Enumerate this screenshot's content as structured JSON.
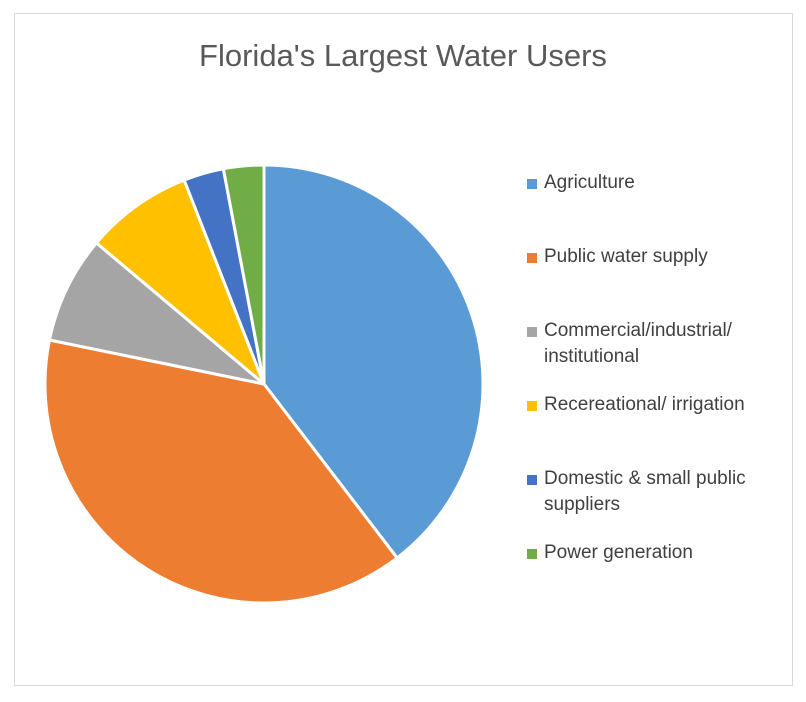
{
  "chart_data": {
    "type": "pie",
    "title": "Florida's Largest Water Users",
    "slices": [
      {
        "label": "Agriculture",
        "value": 40,
        "color": "#5b9bd5"
      },
      {
        "label": "Public water supply",
        "value": 39,
        "color": "#ed7d31"
      },
      {
        "label": "Commercial/industrial/ institutional",
        "value": 8,
        "color": "#a5a5a5"
      },
      {
        "label": "Recereational/ irrigation",
        "value": 8,
        "color": "#ffc000"
      },
      {
        "label": "Domestic & small public suppliers",
        "value": 3,
        "color": "#4472c4"
      },
      {
        "label": "Power generation",
        "value": 3,
        "color": "#70ad47"
      }
    ],
    "legend_position": "right"
  }
}
